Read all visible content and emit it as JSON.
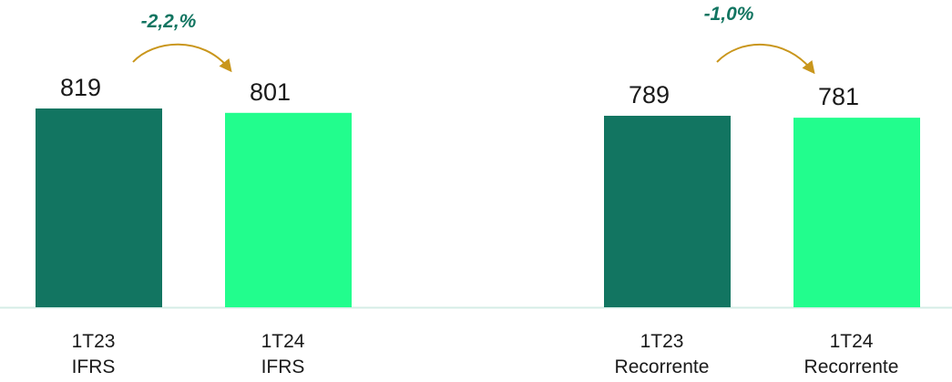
{
  "chart_data": {
    "type": "bar",
    "categories": [
      "1T23 IFRS",
      "1T24 IFRS",
      "1T23 Recorrente",
      "1T24 Recorrente"
    ],
    "category_lines": [
      [
        "1T23",
        "IFRS"
      ],
      [
        "1T24",
        "IFRS"
      ],
      [
        "1T23",
        "Recorrente"
      ],
      [
        "1T24",
        "Recorrente"
      ]
    ],
    "values": [
      819,
      801,
      789,
      781
    ],
    "value_labels": [
      "819",
      "801",
      "789",
      "781"
    ],
    "bar_colors": [
      "#127561",
      "#22fd8d",
      "#127561",
      "#22fd8d"
    ],
    "ylim": [
      0,
      819
    ],
    "grid": false,
    "annotations": [
      {
        "text": "-2,2,%",
        "from_category": 0,
        "to_category": 1
      },
      {
        "text": "-1,0%",
        "from_category": 2,
        "to_category": 3
      }
    ],
    "colors": {
      "dark_bar": "#127561",
      "light_bar": "#22fd8d",
      "baseline": "#d4ece6",
      "arrow": "#c9961c",
      "annotation_text": "#127561",
      "label_text": "#1a1a1a"
    }
  }
}
